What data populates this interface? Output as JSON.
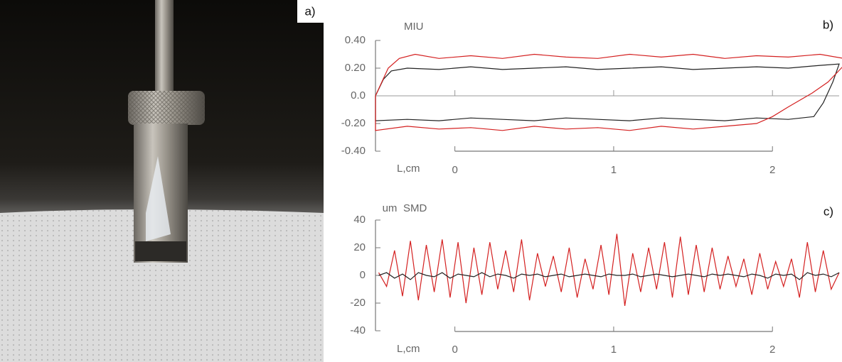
{
  "photo": {
    "label": "a)"
  },
  "chart_data": [
    {
      "type": "line",
      "label": "b)",
      "title": "MIU",
      "xlabel": "L,cm",
      "xlim": [
        -0.5,
        2.42
      ],
      "xticks": [
        0,
        1,
        2
      ],
      "ylim": [
        -0.4,
        0.4
      ],
      "yticks": [
        {
          "value": 0.4,
          "label": "0.40"
        },
        {
          "value": 0.2,
          "label": "0.20"
        },
        {
          "value": 0,
          "label": "0.0"
        },
        {
          "value": -0.2,
          "label": "-0.20"
        },
        {
          "value": -0.4,
          "label": "-0.40"
        }
      ],
      "series": [
        {
          "color": "#222222",
          "x": [
            -0.5,
            -0.45,
            -0.4,
            -0.3,
            -0.1,
            0.1,
            0.3,
            0.5,
            0.7,
            0.9,
            1.1,
            1.3,
            1.5,
            1.7,
            1.9,
            2.1,
            2.3,
            2.42,
            2.38,
            2.32,
            2.26,
            2.1,
            1.9,
            1.7,
            1.5,
            1.3,
            1.1,
            0.9,
            0.7,
            0.5,
            0.3,
            0.1,
            -0.1,
            -0.3,
            -0.5,
            -0.5
          ],
          "values": [
            0,
            0.12,
            0.18,
            0.2,
            0.19,
            0.21,
            0.19,
            0.2,
            0.21,
            0.19,
            0.2,
            0.21,
            0.19,
            0.2,
            0.21,
            0.2,
            0.22,
            0.23,
            0.1,
            -0.05,
            -0.15,
            -0.17,
            -0.16,
            -0.18,
            -0.17,
            -0.16,
            -0.18,
            -0.17,
            -0.16,
            -0.18,
            -0.17,
            -0.16,
            -0.18,
            -0.17,
            -0.18,
            0
          ]
        },
        {
          "color": "#d42020",
          "x": [
            -0.5,
            -0.42,
            -0.35,
            -0.25,
            -0.1,
            0.1,
            0.3,
            0.5,
            0.7,
            0.9,
            1.1,
            1.3,
            1.5,
            1.7,
            1.9,
            2.1,
            2.3,
            2.45,
            2.45,
            2.35,
            2.25,
            2.1,
            2.0,
            1.9,
            1.7,
            1.5,
            1.3,
            1.1,
            0.9,
            0.7,
            0.5,
            0.3,
            0.1,
            -0.1,
            -0.3,
            -0.5,
            -0.5
          ],
          "values": [
            0,
            0.2,
            0.27,
            0.3,
            0.27,
            0.29,
            0.27,
            0.3,
            0.28,
            0.27,
            0.3,
            0.28,
            0.3,
            0.27,
            0.29,
            0.28,
            0.3,
            0.27,
            0.22,
            0.1,
            0.02,
            -0.08,
            -0.15,
            -0.2,
            -0.22,
            -0.24,
            -0.22,
            -0.25,
            -0.23,
            -0.24,
            -0.22,
            -0.25,
            -0.23,
            -0.24,
            -0.22,
            -0.25,
            0
          ]
        }
      ]
    },
    {
      "type": "line",
      "label": "c)",
      "title": "SMD",
      "ylabel": "um",
      "xlabel": "L,cm",
      "xlim": [
        -0.5,
        2.42
      ],
      "xticks": [
        0,
        1,
        2
      ],
      "ylim": [
        -40,
        40
      ],
      "yticks": [
        40,
        20,
        0,
        -20,
        -40
      ],
      "x": [
        -0.48,
        -0.43,
        -0.38,
        -0.33,
        -0.28,
        -0.23,
        -0.18,
        -0.13,
        -0.08,
        -0.03,
        0.02,
        0.07,
        0.12,
        0.17,
        0.22,
        0.27,
        0.32,
        0.37,
        0.42,
        0.47,
        0.52,
        0.57,
        0.62,
        0.67,
        0.72,
        0.77,
        0.82,
        0.87,
        0.92,
        0.97,
        1.02,
        1.07,
        1.12,
        1.17,
        1.22,
        1.27,
        1.32,
        1.37,
        1.42,
        1.47,
        1.52,
        1.57,
        1.62,
        1.67,
        1.72,
        1.77,
        1.82,
        1.87,
        1.92,
        1.97,
        2.02,
        2.07,
        2.12,
        2.17,
        2.22,
        2.27,
        2.32,
        2.37,
        2.42
      ],
      "series": [
        {
          "color": "#d42020",
          "values": [
            2,
            -8,
            18,
            -15,
            25,
            -18,
            22,
            -12,
            26,
            -16,
            24,
            -20,
            20,
            -14,
            24,
            -10,
            18,
            -12,
            26,
            -18,
            16,
            -8,
            14,
            -12,
            20,
            -16,
            12,
            -10,
            22,
            -14,
            30,
            -22,
            16,
            -12,
            20,
            -10,
            24,
            -16,
            28,
            -14,
            22,
            -12,
            20,
            -10,
            14,
            -8,
            12,
            -14,
            16,
            -10,
            10,
            -8,
            12,
            -16,
            24,
            -12,
            18,
            -10,
            2
          ]
        },
        {
          "color": "#222222",
          "values": [
            0,
            2,
            -2,
            1,
            -3,
            2,
            0,
            -1,
            2,
            -2,
            1,
            0,
            -1,
            2,
            -1,
            1,
            0,
            -2,
            1,
            0,
            1,
            -1,
            0,
            1,
            -1,
            0,
            1,
            0,
            -1,
            1,
            0,
            0,
            1,
            -1,
            0,
            1,
            0,
            -1,
            0,
            1,
            0,
            -1,
            1,
            0,
            1,
            0,
            -1,
            1,
            0,
            -2,
            1,
            0,
            1,
            -3,
            2,
            0,
            1,
            -1,
            2
          ]
        }
      ]
    }
  ]
}
